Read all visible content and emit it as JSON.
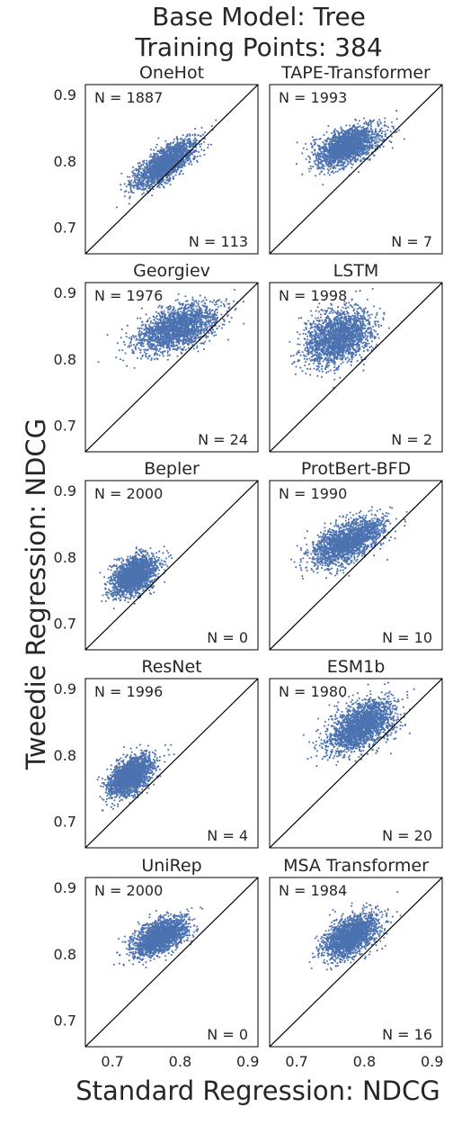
{
  "figure": {
    "title_line1": "Base Model: Tree",
    "title_line2": "Training Points: 384",
    "xlabel": "Standard Regression: NDCG",
    "ylabel": "Tweedie Regression: NDCG"
  },
  "chart_data": {
    "type": "scatter",
    "point_color": "#4c72b0",
    "xlim": [
      0.66,
      0.915
    ],
    "ylim": [
      0.66,
      0.915
    ],
    "xticks": [
      "0.7",
      "0.8",
      "0.9"
    ],
    "yticks": [
      "0.7",
      "0.8",
      "0.9"
    ],
    "diagonal": "y = x",
    "grid": false,
    "panels": [
      {
        "title": "OneHot",
        "n_above": "N = 1887",
        "n_below": "N = 113",
        "cluster": {
          "cx": 0.778,
          "cy": 0.796,
          "sx": 0.022,
          "sy": 0.018,
          "rho": 0.75,
          "count": 2000
        }
      },
      {
        "title": "TAPE-Transformer",
        "n_above": "N = 1993",
        "n_below": "N = 7",
        "cluster": {
          "cx": 0.775,
          "cy": 0.822,
          "sx": 0.023,
          "sy": 0.015,
          "rho": 0.5,
          "count": 2000
        }
      },
      {
        "title": "Georgiev",
        "n_above": "N = 1976",
        "n_below": "N = 24",
        "cluster": {
          "cx": 0.795,
          "cy": 0.846,
          "sx": 0.03,
          "sy": 0.018,
          "rho": 0.5,
          "count": 2000
        }
      },
      {
        "title": "LSTM",
        "n_above": "N = 1998",
        "n_below": "N = 2",
        "cluster": {
          "cx": 0.762,
          "cy": 0.833,
          "sx": 0.024,
          "sy": 0.02,
          "rho": 0.3,
          "count": 2000
        }
      },
      {
        "title": "Bepler",
        "n_above": "N = 2000",
        "n_below": "N = 0",
        "cluster": {
          "cx": 0.732,
          "cy": 0.772,
          "sx": 0.016,
          "sy": 0.015,
          "rho": 0.4,
          "count": 2000
        }
      },
      {
        "title": "ProtBert-BFD",
        "n_above": "N = 1990",
        "n_below": "N = 10",
        "cluster": {
          "cx": 0.775,
          "cy": 0.823,
          "sx": 0.026,
          "sy": 0.018,
          "rho": 0.6,
          "count": 2000
        }
      },
      {
        "title": "ResNet",
        "n_above": "N = 1996",
        "n_below": "N = 4",
        "cluster": {
          "cx": 0.726,
          "cy": 0.768,
          "sx": 0.016,
          "sy": 0.015,
          "rho": 0.5,
          "count": 2000
        }
      },
      {
        "title": "ESM1b",
        "n_above": "N = 1980",
        "n_below": "N = 20",
        "cluster": {
          "cx": 0.795,
          "cy": 0.843,
          "sx": 0.025,
          "sy": 0.02,
          "rho": 0.5,
          "count": 2000
        }
      },
      {
        "title": "UniRep",
        "n_above": "N = 2000",
        "n_below": "N = 0",
        "cluster": {
          "cx": 0.77,
          "cy": 0.826,
          "sx": 0.02,
          "sy": 0.014,
          "rho": 0.5,
          "count": 2000
        }
      },
      {
        "title": "MSA Transformer",
        "n_above": "N = 1984",
        "n_below": "N = 16",
        "cluster": {
          "cx": 0.78,
          "cy": 0.826,
          "sx": 0.02,
          "sy": 0.016,
          "rho": 0.5,
          "count": 2000
        }
      }
    ]
  }
}
